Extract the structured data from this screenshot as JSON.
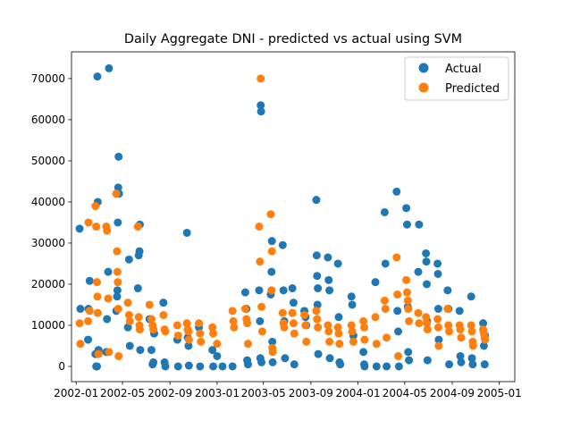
{
  "chart_data": {
    "type": "scatter",
    "title": "Daily Aggregate DNI - predicted vs actual using SVM",
    "xlabel": "",
    "ylabel": "",
    "x_type": "date",
    "xlim": [
      "2001-12-20",
      "2005-02-10"
    ],
    "ylim": [
      -3700,
      76500
    ],
    "x_ticks": [
      "2002-01-01",
      "2002-05-01",
      "2002-09-01",
      "2003-01-01",
      "2003-05-01",
      "2003-09-01",
      "2004-01-01",
      "2004-05-01",
      "2004-09-01",
      "2005-01-01"
    ],
    "x_tick_labels": [
      "2002-01",
      "2002-05",
      "2002-09",
      "2003-01",
      "2003-05",
      "2003-09",
      "2004-01",
      "2004-05",
      "2004-09",
      "2005-01"
    ],
    "y_ticks": [
      0,
      10000,
      20000,
      30000,
      40000,
      50000,
      60000,
      70000
    ],
    "y_tick_labels": [
      "0",
      "10000",
      "20000",
      "30000",
      "40000",
      "50000",
      "60000",
      "70000"
    ],
    "grid": false,
    "legend_position": "top-right",
    "series": [
      {
        "name": "Actual",
        "color": "#1f77b4",
        "points": [
          [
            "2002-01-10",
            33500
          ],
          [
            "2002-01-12",
            14000
          ],
          [
            "2002-02-01",
            6500
          ],
          [
            "2002-02-02",
            14000
          ],
          [
            "2002-02-05",
            20800
          ],
          [
            "2002-02-20",
            3000
          ],
          [
            "2002-02-22",
            0
          ],
          [
            "2002-02-24",
            0
          ],
          [
            "2002-02-25",
            70500
          ],
          [
            "2002-02-26",
            40000
          ],
          [
            "2002-02-28",
            4000
          ],
          [
            "2002-03-20",
            3500
          ],
          [
            "2002-03-22",
            11500
          ],
          [
            "2002-03-25",
            23000
          ],
          [
            "2002-03-27",
            72500
          ],
          [
            "2002-04-15",
            13500
          ],
          [
            "2002-04-17",
            17000
          ],
          [
            "2002-04-18",
            18500
          ],
          [
            "2002-04-19",
            35000
          ],
          [
            "2002-04-20",
            43500
          ],
          [
            "2002-04-21",
            51000
          ],
          [
            "2002-04-22",
            42000
          ],
          [
            "2002-05-15",
            9500
          ],
          [
            "2002-05-18",
            26000
          ],
          [
            "2002-05-20",
            5000
          ],
          [
            "2002-06-10",
            19000
          ],
          [
            "2002-06-12",
            27000
          ],
          [
            "2002-06-14",
            28000
          ],
          [
            "2002-06-15",
            34500
          ],
          [
            "2002-06-16",
            4000
          ],
          [
            "2002-07-10",
            11500
          ],
          [
            "2002-07-15",
            4000
          ],
          [
            "2002-07-18",
            500
          ],
          [
            "2002-07-20",
            1000
          ],
          [
            "2002-07-22",
            8000
          ],
          [
            "2002-08-15",
            15500
          ],
          [
            "2002-08-18",
            1000
          ],
          [
            "2002-08-20",
            0
          ],
          [
            "2002-09-20",
            6500
          ],
          [
            "2002-09-22",
            0
          ],
          [
            "2002-10-15",
            32500
          ],
          [
            "2002-10-17",
            7000
          ],
          [
            "2002-10-19",
            5000
          ],
          [
            "2002-10-20",
            200
          ],
          [
            "2002-11-15",
            9500
          ],
          [
            "2002-11-18",
            0
          ],
          [
            "2002-12-20",
            4000
          ],
          [
            "2002-12-22",
            0
          ],
          [
            "2003-01-01",
            2500
          ],
          [
            "2003-01-15",
            0
          ],
          [
            "2003-02-10",
            0
          ],
          [
            "2003-03-15",
            18000
          ],
          [
            "2003-03-18",
            14000
          ],
          [
            "2003-03-20",
            1500
          ],
          [
            "2003-03-22",
            500
          ],
          [
            "2003-04-20",
            18500
          ],
          [
            "2003-04-22",
            11000
          ],
          [
            "2003-04-23",
            2000
          ],
          [
            "2003-04-24",
            63500
          ],
          [
            "2003-04-25",
            62000
          ],
          [
            "2003-04-26",
            1000
          ],
          [
            "2003-05-20",
            17500
          ],
          [
            "2003-05-22",
            23000
          ],
          [
            "2003-05-23",
            30500
          ],
          [
            "2003-05-24",
            6000
          ],
          [
            "2003-05-25",
            1000
          ],
          [
            "2003-06-20",
            29500
          ],
          [
            "2003-06-22",
            18500
          ],
          [
            "2003-06-24",
            11000
          ],
          [
            "2003-06-26",
            2000
          ],
          [
            "2003-07-15",
            19000
          ],
          [
            "2003-07-18",
            15500
          ],
          [
            "2003-07-20",
            500
          ],
          [
            "2003-08-15",
            13500
          ],
          [
            "2003-08-18",
            12000
          ],
          [
            "2003-08-20",
            10000
          ],
          [
            "2003-09-15",
            40500
          ],
          [
            "2003-09-16",
            27000
          ],
          [
            "2003-09-17",
            22000
          ],
          [
            "2003-09-18",
            15000
          ],
          [
            "2003-09-19",
            19000
          ],
          [
            "2003-09-20",
            3000
          ],
          [
            "2003-10-15",
            26500
          ],
          [
            "2003-10-17",
            21000
          ],
          [
            "2003-10-19",
            18500
          ],
          [
            "2003-10-20",
            2000
          ],
          [
            "2003-11-10",
            25000
          ],
          [
            "2003-11-12",
            12000
          ],
          [
            "2003-11-14",
            1000
          ],
          [
            "2003-11-16",
            500
          ],
          [
            "2003-12-15",
            17000
          ],
          [
            "2003-12-17",
            15000
          ],
          [
            "2003-12-20",
            7500
          ],
          [
            "2004-01-15",
            3500
          ],
          [
            "2004-01-17",
            500
          ],
          [
            "2004-01-18",
            0
          ],
          [
            "2004-02-15",
            20500
          ],
          [
            "2004-02-18",
            0
          ],
          [
            "2004-03-10",
            37500
          ],
          [
            "2004-03-12",
            25000
          ],
          [
            "2004-03-15",
            0
          ],
          [
            "2004-04-10",
            42500
          ],
          [
            "2004-04-12",
            13500
          ],
          [
            "2004-04-14",
            8500
          ],
          [
            "2004-04-16",
            0
          ],
          [
            "2004-05-05",
            38500
          ],
          [
            "2004-05-07",
            34500
          ],
          [
            "2004-05-09",
            14500
          ],
          [
            "2004-05-10",
            3500
          ],
          [
            "2004-05-12",
            1500
          ],
          [
            "2004-06-05",
            23000
          ],
          [
            "2004-06-07",
            34500
          ],
          [
            "2004-06-25",
            27500
          ],
          [
            "2004-06-26",
            25500
          ],
          [
            "2004-06-27",
            20000
          ],
          [
            "2004-06-28",
            11000
          ],
          [
            "2004-06-29",
            1500
          ],
          [
            "2004-07-25",
            25000
          ],
          [
            "2004-07-26",
            22500
          ],
          [
            "2004-07-27",
            14000
          ],
          [
            "2004-07-28",
            6500
          ],
          [
            "2004-08-20",
            18500
          ],
          [
            "2004-08-22",
            14000
          ],
          [
            "2004-08-24",
            500
          ],
          [
            "2004-09-20",
            13500
          ],
          [
            "2004-09-22",
            2500
          ],
          [
            "2004-09-24",
            1000
          ],
          [
            "2004-10-20",
            17000
          ],
          [
            "2004-10-22",
            2000
          ],
          [
            "2004-10-24",
            500
          ],
          [
            "2004-11-20",
            10500
          ],
          [
            "2004-11-22",
            5000
          ],
          [
            "2004-11-24",
            500
          ],
          [
            "2004-11-25",
            7500
          ]
        ]
      },
      {
        "name": "Predicted",
        "color": "#ff7f0e",
        "points": [
          [
            "2002-01-10",
            10500
          ],
          [
            "2002-01-12",
            5500
          ],
          [
            "2002-02-01",
            11000
          ],
          [
            "2002-02-02",
            35000
          ],
          [
            "2002-02-05",
            13500
          ],
          [
            "2002-02-20",
            39000
          ],
          [
            "2002-02-22",
            34000
          ],
          [
            "2002-02-24",
            20500
          ],
          [
            "2002-02-25",
            17000
          ],
          [
            "2002-02-26",
            13000
          ],
          [
            "2002-02-28",
            3000
          ],
          [
            "2002-03-20",
            34000
          ],
          [
            "2002-03-22",
            33000
          ],
          [
            "2002-03-25",
            16500
          ],
          [
            "2002-03-27",
            3500
          ],
          [
            "2002-04-15",
            42000
          ],
          [
            "2002-04-17",
            28000
          ],
          [
            "2002-04-18",
            23000
          ],
          [
            "2002-04-19",
            20500
          ],
          [
            "2002-04-20",
            14000
          ],
          [
            "2002-04-21",
            2500
          ],
          [
            "2002-05-15",
            15500
          ],
          [
            "2002-05-18",
            12500
          ],
          [
            "2002-05-20",
            11000
          ],
          [
            "2002-06-10",
            34000
          ],
          [
            "2002-06-12",
            12000
          ],
          [
            "2002-06-14",
            10000
          ],
          [
            "2002-06-15",
            9000
          ],
          [
            "2002-07-10",
            15000
          ],
          [
            "2002-07-15",
            11500
          ],
          [
            "2002-07-18",
            10000
          ],
          [
            "2002-07-20",
            9000
          ],
          [
            "2002-08-15",
            12500
          ],
          [
            "2002-08-18",
            9000
          ],
          [
            "2002-08-20",
            8500
          ],
          [
            "2002-09-20",
            10000
          ],
          [
            "2002-09-22",
            7500
          ],
          [
            "2002-10-15",
            10500
          ],
          [
            "2002-10-17",
            9000
          ],
          [
            "2002-10-19",
            8500
          ],
          [
            "2002-10-20",
            6500
          ],
          [
            "2002-11-15",
            10500
          ],
          [
            "2002-11-18",
            8000
          ],
          [
            "2002-11-20",
            6000
          ],
          [
            "2002-12-20",
            9500
          ],
          [
            "2002-12-22",
            8000
          ],
          [
            "2003-01-01",
            5500
          ],
          [
            "2003-02-10",
            13500
          ],
          [
            "2003-02-12",
            11000
          ],
          [
            "2003-02-14",
            9500
          ],
          [
            "2003-03-15",
            14000
          ],
          [
            "2003-03-18",
            11500
          ],
          [
            "2003-03-20",
            10500
          ],
          [
            "2003-03-22",
            5500
          ],
          [
            "2003-04-20",
            34000
          ],
          [
            "2003-04-22",
            25500
          ],
          [
            "2003-04-24",
            70000
          ],
          [
            "2003-04-26",
            14500
          ],
          [
            "2003-04-28",
            8500
          ],
          [
            "2003-05-20",
            37000
          ],
          [
            "2003-05-22",
            18500
          ],
          [
            "2003-05-23",
            28000
          ],
          [
            "2003-05-24",
            4500
          ],
          [
            "2003-05-25",
            3500
          ],
          [
            "2003-06-20",
            13000
          ],
          [
            "2003-06-22",
            10500
          ],
          [
            "2003-06-24",
            9500
          ],
          [
            "2003-07-15",
            13000
          ],
          [
            "2003-07-18",
            10500
          ],
          [
            "2003-07-20",
            8000
          ],
          [
            "2003-08-15",
            12500
          ],
          [
            "2003-08-18",
            10000
          ],
          [
            "2003-08-20",
            6000
          ],
          [
            "2003-09-15",
            13500
          ],
          [
            "2003-09-17",
            11500
          ],
          [
            "2003-09-19",
            9500
          ],
          [
            "2003-10-15",
            10000
          ],
          [
            "2003-10-17",
            8500
          ],
          [
            "2003-10-19",
            6000
          ],
          [
            "2003-11-10",
            9500
          ],
          [
            "2003-11-12",
            8000
          ],
          [
            "2003-11-14",
            5500
          ],
          [
            "2003-12-15",
            10000
          ],
          [
            "2003-12-17",
            8500
          ],
          [
            "2003-12-20",
            6000
          ],
          [
            "2004-01-15",
            11000
          ],
          [
            "2004-01-17",
            9500
          ],
          [
            "2004-01-18",
            6500
          ],
          [
            "2004-02-15",
            12000
          ],
          [
            "2004-02-18",
            5500
          ],
          [
            "2004-03-10",
            16000
          ],
          [
            "2004-03-12",
            14000
          ],
          [
            "2004-03-15",
            7000
          ],
          [
            "2004-04-10",
            26500
          ],
          [
            "2004-04-12",
            17500
          ],
          [
            "2004-04-14",
            2500
          ],
          [
            "2004-05-05",
            21000
          ],
          [
            "2004-05-07",
            18000
          ],
          [
            "2004-05-09",
            16000
          ],
          [
            "2004-05-10",
            14000
          ],
          [
            "2004-05-12",
            11000
          ],
          [
            "2004-06-05",
            13000
          ],
          [
            "2004-06-07",
            10500
          ],
          [
            "2004-06-25",
            12000
          ],
          [
            "2004-06-27",
            10500
          ],
          [
            "2004-06-29",
            9000
          ],
          [
            "2004-07-25",
            11500
          ],
          [
            "2004-07-27",
            9500
          ],
          [
            "2004-07-28",
            5000
          ],
          [
            "2004-08-20",
            14000
          ],
          [
            "2004-08-22",
            10000
          ],
          [
            "2004-08-24",
            8500
          ],
          [
            "2004-09-20",
            10000
          ],
          [
            "2004-09-22",
            9000
          ],
          [
            "2004-09-24",
            7000
          ],
          [
            "2004-10-20",
            10000
          ],
          [
            "2004-10-22",
            8500
          ],
          [
            "2004-10-24",
            6000
          ],
          [
            "2004-10-25",
            5000
          ],
          [
            "2004-11-20",
            9000
          ],
          [
            "2004-11-22",
            8000
          ],
          [
            "2004-11-24",
            7000
          ],
          [
            "2004-11-25",
            6500
          ]
        ]
      }
    ]
  }
}
